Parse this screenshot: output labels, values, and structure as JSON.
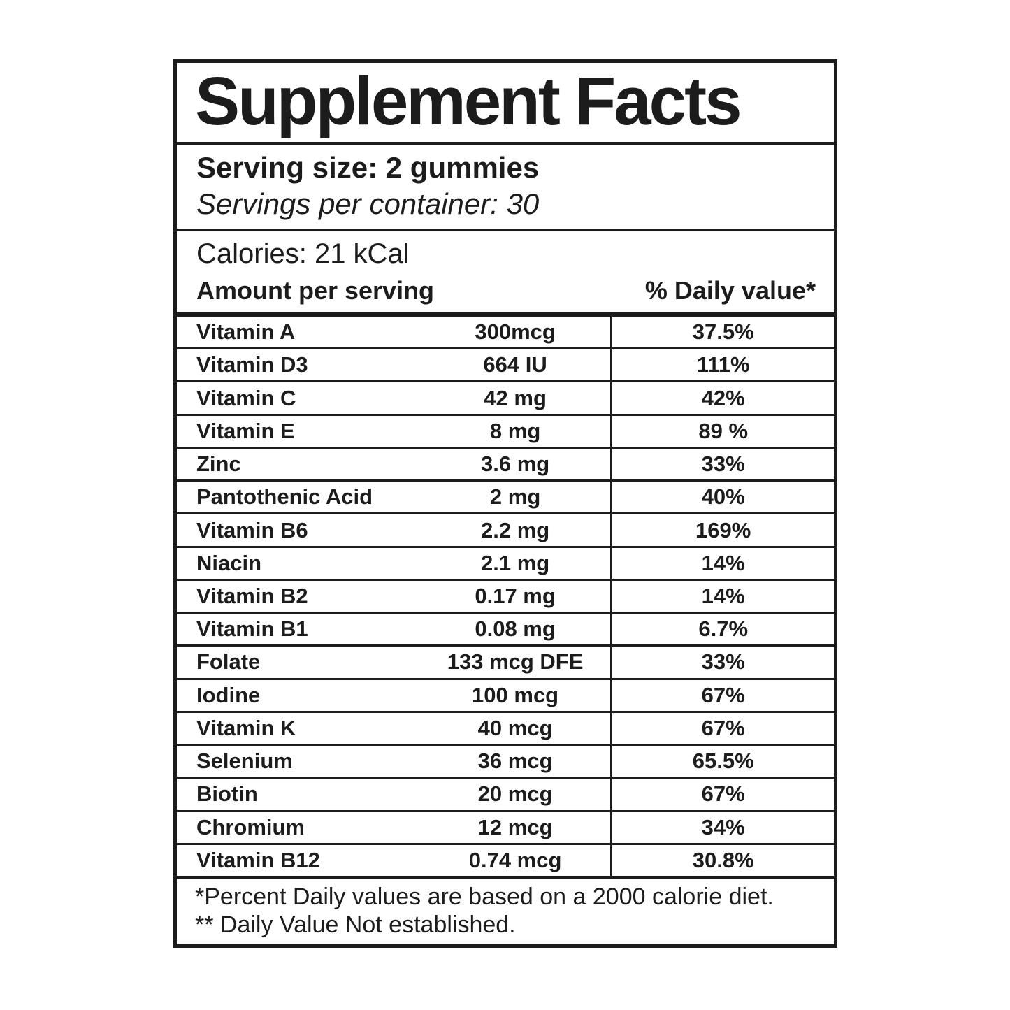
{
  "colors": {
    "ink": "#1c1c1c",
    "paper": "#ffffff"
  },
  "label": {
    "title": "Supplement Facts",
    "serving_size": "Serving size: 2 gummies",
    "servings_per_container": "Servings per container: 30",
    "calories": "Calories: 21 kCal",
    "column_headers": {
      "amount": "Amount per serving",
      "daily_value": "% Daily value*"
    },
    "rows": [
      {
        "name": "Vitamin A",
        "amount": "300mcg",
        "dv": "37.5%"
      },
      {
        "name": "Vitamin D3",
        "amount": "664 IU",
        "dv": "111%"
      },
      {
        "name": "Vitamin C",
        "amount": "42 mg",
        "dv": "42%"
      },
      {
        "name": "Vitamin E",
        "amount": "8 mg",
        "dv": "89 %"
      },
      {
        "name": "Zinc",
        "amount": "3.6 mg",
        "dv": "33%"
      },
      {
        "name": "Pantothenic Acid",
        "amount": "2 mg",
        "dv": "40%"
      },
      {
        "name": "Vitamin B6",
        "amount": "2.2 mg",
        "dv": "169%"
      },
      {
        "name": "Niacin",
        "amount": "2.1 mg",
        "dv": "14%"
      },
      {
        "name": "Vitamin B2",
        "amount": "0.17 mg",
        "dv": "14%"
      },
      {
        "name": "Vitamin B1",
        "amount": "0.08 mg",
        "dv": "6.7%"
      },
      {
        "name": "Folate",
        "amount": "133 mcg DFE",
        "dv": "33%"
      },
      {
        "name": "Iodine",
        "amount": "100 mcg",
        "dv": "67%"
      },
      {
        "name": "Vitamin K",
        "amount": "40 mcg",
        "dv": "67%"
      },
      {
        "name": "Selenium",
        "amount": "36 mcg",
        "dv": "65.5%"
      },
      {
        "name": "Biotin",
        "amount": "20 mcg",
        "dv": "67%"
      },
      {
        "name": "Chromium",
        "amount": "12 mcg",
        "dv": "34%"
      },
      {
        "name": "Vitamin B12",
        "amount": "0.74 mcg",
        "dv": "30.8%"
      }
    ],
    "footnotes": {
      "daily_value_basis": "*Percent Daily values are based on a 2000 calorie diet.",
      "not_established": "** Daily Value Not established."
    }
  }
}
